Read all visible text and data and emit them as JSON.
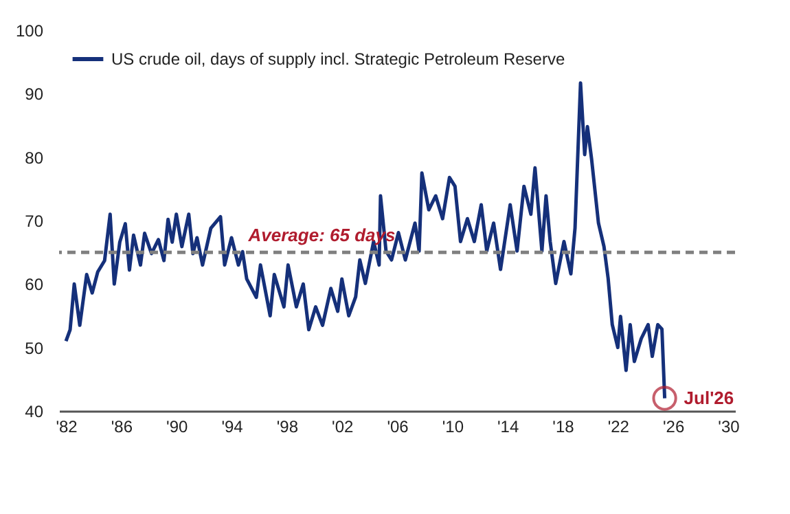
{
  "chart_data": {
    "type": "line",
    "x": [
      1982.0,
      1982.3,
      1982.6,
      1983.0,
      1983.5,
      1983.9,
      1984.3,
      1984.8,
      1985.2,
      1985.5,
      1985.9,
      1986.3,
      1986.6,
      1986.9,
      1987.4,
      1987.7,
      1988.2,
      1988.7,
      1989.1,
      1989.4,
      1989.7,
      1990.0,
      1990.4,
      1990.9,
      1991.2,
      1991.5,
      1991.9,
      1992.5,
      1993.2,
      1993.5,
      1994.0,
      1994.5,
      1994.8,
      1995.1,
      1995.8,
      1996.1,
      1996.8,
      1997.1,
      1997.8,
      1998.1,
      1998.7,
      1999.2,
      1999.6,
      2000.1,
      2000.6,
      2001.2,
      2001.7,
      2002.0,
      2002.5,
      2003.0,
      2003.3,
      2003.7,
      2004.3,
      2004.7,
      2004.8,
      2005.2,
      2005.6,
      2006.1,
      2006.6,
      2007.3,
      2007.6,
      2007.8,
      2008.3,
      2008.8,
      2009.3,
      2009.8,
      2010.2,
      2010.6,
      2011.1,
      2011.6,
      2012.1,
      2012.5,
      2013.0,
      2013.5,
      2014.2,
      2014.7,
      2015.2,
      2015.7,
      2016.0,
      2016.5,
      2016.8,
      2017.1,
      2017.5,
      2018.1,
      2018.6,
      2018.9,
      2019.3,
      2019.6,
      2019.8,
      2020.1,
      2020.6,
      2021.0,
      2021.3,
      2021.6,
      2022.0,
      2022.2,
      2022.6,
      2022.9,
      2023.2,
      2023.7,
      2024.2,
      2024.5,
      2024.9,
      2025.2,
      2025.4
    ],
    "series": [
      {
        "name": "US crude oil, days of supply incl. Strategic Petroleum Reserve",
        "color": "#15307a",
        "values": [
          51,
          52.8,
          60,
          53.5,
          61.5,
          58.6,
          61.9,
          63.7,
          71,
          60,
          66.6,
          69.5,
          62.2,
          67.7,
          63,
          68,
          64.8,
          67,
          63.7,
          70.2,
          66.6,
          71,
          65.9,
          71,
          64.8,
          67.3,
          63,
          68.8,
          70.6,
          63,
          67.3,
          63,
          65.1,
          60.8,
          57.9,
          63,
          55,
          61.5,
          56.4,
          63,
          56.4,
          60,
          52.8,
          56.4,
          53.5,
          59.3,
          55.7,
          60.8,
          55,
          58,
          63.8,
          60.1,
          66.7,
          63,
          73.9,
          65.2,
          63.8,
          68.1,
          63.8,
          69.6,
          65.2,
          77.5,
          71.7,
          73.9,
          70.3,
          76.8,
          75.4,
          66.7,
          70.3,
          66.7,
          72.5,
          65.2,
          69.6,
          62.3,
          72.5,
          65.2,
          75.4,
          71,
          78.3,
          65.2,
          73.9,
          66.7,
          60.1,
          66.7,
          61.6,
          68.8,
          91.7,
          80.4,
          84.8,
          79.7,
          69.6,
          65.9,
          60.9,
          53.6,
          50,
          54.9,
          46.4,
          53.6,
          47.8,
          51.4,
          53.6,
          48.6,
          53.6,
          52.9,
          42
        ]
      }
    ],
    "xlim": [
      1981.5,
      2030.5
    ],
    "xticks": [
      {
        "value": 1982,
        "label": "'82"
      },
      {
        "value": 1986,
        "label": "'86"
      },
      {
        "value": 1990,
        "label": "'90"
      },
      {
        "value": 1994,
        "label": "'94"
      },
      {
        "value": 1998,
        "label": "'98"
      },
      {
        "value": 2002,
        "label": "'02"
      },
      {
        "value": 2006,
        "label": "'06"
      },
      {
        "value": 2010,
        "label": "'10"
      },
      {
        "value": 2014,
        "label": "'14"
      },
      {
        "value": 2018,
        "label": "'18"
      },
      {
        "value": 2022,
        "label": "'22"
      },
      {
        "value": 2026,
        "label": "'26"
      },
      {
        "value": 2030,
        "label": "'30"
      }
    ],
    "ylim": [
      40,
      100
    ],
    "yticks": [
      40,
      50,
      60,
      70,
      80,
      90,
      100
    ],
    "ref_lines": [
      {
        "axis": "y",
        "value": 65,
        "label": "Average: 65 days",
        "color": "#808080",
        "line_style": "dashed"
      }
    ],
    "annotations": [
      {
        "text": "Jul'26",
        "x": 2025.4,
        "y": 42
      }
    ],
    "legend": "top left",
    "grid": false,
    "line_style": "solid",
    "marker": "none"
  }
}
